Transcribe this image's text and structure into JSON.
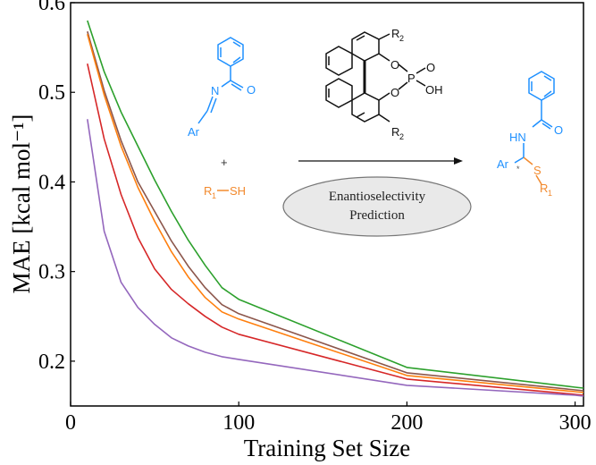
{
  "chart_data": {
    "type": "line",
    "xlabel": "Training Set Size",
    "ylabel": "MAE [kcal mol⁻¹]",
    "xlim": [
      0,
      305
    ],
    "ylim": [
      0.15,
      0.6
    ],
    "x_ticks": [
      0,
      100,
      200,
      300
    ],
    "y_ticks": [
      0.2,
      0.3,
      0.4,
      0.5,
      0.6
    ],
    "x_tick_labels": [
      "0",
      "100",
      "200",
      "300"
    ],
    "y_tick_labels": [
      "0.2",
      "0.3",
      "0.4",
      "0.5",
      "0.6"
    ],
    "grid": false,
    "legend": "none",
    "series": [
      {
        "color": "#2ca02c",
        "points": [
          [
            10,
            0.58
          ],
          [
            20,
            0.523
          ],
          [
            30,
            0.478
          ],
          [
            40,
            0.44
          ],
          [
            50,
            0.402
          ],
          [
            60,
            0.367
          ],
          [
            70,
            0.335
          ],
          [
            80,
            0.307
          ],
          [
            90,
            0.282
          ],
          [
            100,
            0.269
          ],
          [
            200,
            0.193
          ],
          [
            300,
            0.171
          ],
          [
            305,
            0.17
          ]
        ]
      },
      {
        "color": "#8c564b",
        "points": [
          [
            10,
            0.568
          ],
          [
            20,
            0.502
          ],
          [
            30,
            0.446
          ],
          [
            40,
            0.4
          ],
          [
            50,
            0.367
          ],
          [
            60,
            0.334
          ],
          [
            70,
            0.306
          ],
          [
            80,
            0.282
          ],
          [
            90,
            0.263
          ],
          [
            100,
            0.253
          ],
          [
            200,
            0.187
          ],
          [
            300,
            0.168
          ],
          [
            305,
            0.167
          ]
        ]
      },
      {
        "color": "#ff7f0e",
        "points": [
          [
            10,
            0.565
          ],
          [
            20,
            0.497
          ],
          [
            30,
            0.44
          ],
          [
            40,
            0.394
          ],
          [
            50,
            0.356
          ],
          [
            60,
            0.322
          ],
          [
            70,
            0.294
          ],
          [
            80,
            0.271
          ],
          [
            90,
            0.255
          ],
          [
            100,
            0.247
          ],
          [
            200,
            0.184
          ],
          [
            300,
            0.166
          ],
          [
            305,
            0.165
          ]
        ]
      },
      {
        "color": "#d62728",
        "points": [
          [
            10,
            0.532
          ],
          [
            20,
            0.448
          ],
          [
            30,
            0.386
          ],
          [
            40,
            0.338
          ],
          [
            50,
            0.303
          ],
          [
            60,
            0.28
          ],
          [
            70,
            0.264
          ],
          [
            80,
            0.25
          ],
          [
            90,
            0.238
          ],
          [
            100,
            0.23
          ],
          [
            200,
            0.18
          ],
          [
            300,
            0.163
          ],
          [
            305,
            0.162
          ]
        ]
      },
      {
        "color": "#9467bd",
        "points": [
          [
            10,
            0.47
          ],
          [
            20,
            0.345
          ],
          [
            30,
            0.288
          ],
          [
            40,
            0.26
          ],
          [
            50,
            0.241
          ],
          [
            60,
            0.226
          ],
          [
            70,
            0.217
          ],
          [
            80,
            0.21
          ],
          [
            90,
            0.205
          ],
          [
            100,
            0.202
          ],
          [
            200,
            0.173
          ],
          [
            300,
            0.162
          ],
          [
            305,
            0.161
          ]
        ]
      }
    ]
  },
  "inset": {
    "colors": {
      "blue": "#1e90ff",
      "orange": "#f28a2e",
      "dark": "#111111"
    },
    "imine": {
      "aryl": "Ar",
      "nitrogen": "N"
    },
    "plus": "+",
    "thiol": {
      "r1": "R",
      "sub1": "1",
      "sh": "SH"
    },
    "catalyst": {
      "r2_top": "R",
      "r2_bottom": "R",
      "sub2": "2",
      "o1": "O",
      "o2": "O",
      "o3": "O",
      "p": "P",
      "oh": "OH"
    },
    "product": {
      "hn": "HN",
      "o": "O",
      "ar": "Ar",
      "s": "S",
      "r1": "R",
      "sub1": "1",
      "star": "*"
    },
    "ellipse_text_line1": "Enantioselectivity",
    "ellipse_text_line2": "Prediction"
  }
}
